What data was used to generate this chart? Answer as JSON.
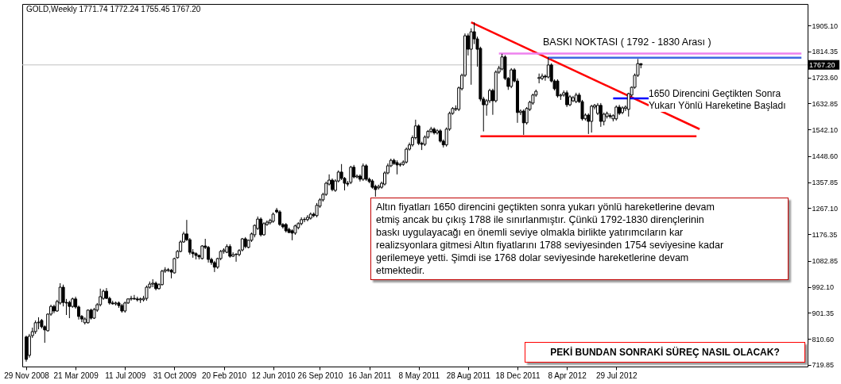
{
  "chart_data": {
    "type": "candlestick",
    "title": "GOLD,Weekly  1771.74 1772.24 1755.45 1767.20",
    "x": [
      "2008-11-29",
      "2008-12-06",
      "2008-12-13",
      "2008-12-20",
      "2008-12-27",
      "2009-01-03",
      "2009-01-10",
      "2009-01-17",
      "2009-01-24",
      "2009-01-31",
      "2009-02-07",
      "2009-02-14",
      "2009-02-21",
      "2009-02-28",
      "2009-03-07",
      "2009-03-14",
      "2009-03-21",
      "2009-03-28",
      "2009-04-04",
      "2009-04-11",
      "2009-04-18",
      "2009-04-25",
      "2009-05-02",
      "2009-05-09",
      "2009-05-16",
      "2009-05-23",
      "2009-05-30",
      "2009-06-06",
      "2009-06-13",
      "2009-06-20",
      "2009-06-27",
      "2009-07-04",
      "2009-07-11",
      "2009-07-18",
      "2009-07-25",
      "2009-08-01",
      "2009-08-08",
      "2009-08-15",
      "2009-08-22",
      "2009-08-29",
      "2009-09-05",
      "2009-09-12",
      "2009-09-19",
      "2009-09-26",
      "2009-10-03",
      "2009-10-10",
      "2009-10-17",
      "2009-10-24",
      "2009-10-31",
      "2009-11-07",
      "2009-11-14",
      "2009-11-21",
      "2009-11-28",
      "2009-12-05",
      "2009-12-12",
      "2009-12-19",
      "2009-12-26",
      "2010-01-02",
      "2010-01-09",
      "2010-01-16",
      "2010-01-23",
      "2010-01-30",
      "2010-02-06",
      "2010-02-13",
      "2010-02-20",
      "2010-02-27",
      "2010-03-06",
      "2010-03-13",
      "2010-03-20",
      "2010-03-27",
      "2010-04-03",
      "2010-04-10",
      "2010-04-17",
      "2010-04-24",
      "2010-05-01",
      "2010-05-08",
      "2010-05-15",
      "2010-05-22",
      "2010-05-29",
      "2010-06-05",
      "2010-06-12",
      "2010-06-20",
      "2010-06-27",
      "2010-07-04",
      "2010-07-11",
      "2010-07-18",
      "2010-07-25",
      "2010-08-01",
      "2010-08-08",
      "2010-08-15",
      "2010-08-22",
      "2010-08-29",
      "2010-09-05",
      "2010-09-12",
      "2010-09-19",
      "2010-09-26",
      "2010-10-03",
      "2010-10-10",
      "2010-10-17",
      "2010-10-24",
      "2010-10-31",
      "2010-11-07",
      "2010-11-14",
      "2010-11-21",
      "2010-11-28",
      "2010-12-05",
      "2010-12-12",
      "2010-12-19",
      "2010-12-26",
      "2011-01-02",
      "2011-01-09",
      "2011-01-16",
      "2011-01-23",
      "2011-01-30",
      "2011-02-06",
      "2011-02-13",
      "2011-02-20",
      "2011-02-27",
      "2011-03-06",
      "2011-03-13",
      "2011-03-20",
      "2011-03-27",
      "2011-04-03",
      "2011-04-10",
      "2011-04-17",
      "2011-04-24",
      "2011-05-01",
      "2011-05-08",
      "2011-05-15",
      "2011-05-22",
      "2011-05-29",
      "2011-06-05",
      "2011-06-12",
      "2011-06-19",
      "2011-06-26",
      "2011-07-03",
      "2011-07-10",
      "2011-07-17",
      "2011-07-24",
      "2011-07-31",
      "2011-08-07",
      "2011-08-14",
      "2011-08-21",
      "2011-08-28",
      "2011-09-04",
      "2011-09-11",
      "2011-09-18",
      "2011-09-25",
      "2011-10-02",
      "2011-10-09",
      "2011-10-16",
      "2011-10-23",
      "2011-10-30",
      "2011-11-06",
      "2011-11-13",
      "2011-11-20",
      "2011-11-27",
      "2011-12-04",
      "2011-12-11",
      "2011-12-18",
      "2011-12-25",
      "2012-01-01",
      "2012-01-08",
      "2012-01-15",
      "2012-01-22",
      "2012-01-29",
      "2012-02-05",
      "2012-02-12",
      "2012-02-19",
      "2012-02-26",
      "2012-03-04",
      "2012-03-11",
      "2012-03-18",
      "2012-03-25",
      "2012-04-01",
      "2012-04-08",
      "2012-04-15",
      "2012-04-22",
      "2012-04-29",
      "2012-05-06",
      "2012-05-13",
      "2012-05-20",
      "2012-05-27",
      "2012-06-03",
      "2012-06-10",
      "2012-06-17",
      "2012-06-24",
      "2012-07-01",
      "2012-07-08",
      "2012-07-15",
      "2012-07-22",
      "2012-07-29",
      "2012-08-05",
      "2012-08-12",
      "2012-08-19",
      "2012-08-26",
      "2012-09-02",
      "2012-09-09",
      "2012-09-16",
      "2012-09-23"
    ],
    "ohlc": [
      [
        817,
        822,
        731,
        739
      ],
      [
        753,
        828,
        745,
        820
      ],
      [
        822,
        850,
        814,
        836
      ],
      [
        836,
        875,
        828,
        867
      ],
      [
        867,
        886,
        844,
        869
      ],
      [
        875,
        880,
        847,
        853
      ],
      [
        853,
        858,
        797,
        842
      ],
      [
        839,
        900,
        836,
        897
      ],
      [
        897,
        930,
        891,
        924
      ],
      [
        924,
        930,
        900,
        908
      ],
      [
        908,
        947,
        905,
        941
      ],
      [
        936,
        1005,
        930,
        991
      ],
      [
        991,
        1000,
        924,
        938
      ],
      [
        938,
        950,
        894,
        936
      ],
      [
        938,
        944,
        883,
        924
      ],
      [
        924,
        955,
        919,
        950
      ],
      [
        950,
        958,
        916,
        922
      ],
      [
        922,
        927,
        878,
        889
      ],
      [
        889,
        894,
        869,
        880
      ],
      [
        867,
        886,
        861,
        880
      ],
      [
        867,
        913,
        864,
        911
      ],
      [
        911,
        916,
        878,
        883
      ],
      [
        883,
        919,
        880,
        913
      ],
      [
        911,
        936,
        905,
        930
      ],
      [
        930,
        986,
        924,
        958
      ],
      [
        952,
        983,
        947,
        977
      ],
      [
        977,
        988,
        950,
        952
      ],
      [
        952,
        958,
        930,
        936
      ],
      [
        936,
        944,
        930,
        933
      ],
      [
        933,
        941,
        927,
        936
      ],
      [
        936,
        941,
        919,
        927
      ],
      [
        927,
        933,
        902,
        908
      ],
      [
        908,
        941,
        902,
        936
      ],
      [
        936,
        952,
        933,
        950
      ],
      [
        950,
        961,
        944,
        952
      ],
      [
        952,
        964,
        947,
        950
      ],
      [
        950,
        958,
        941,
        947
      ],
      [
        947,
        955,
        936,
        950
      ],
      [
        947,
        961,
        941,
        952
      ],
      [
        952,
        997,
        944,
        991
      ],
      [
        991,
        1011,
        986,
        1002
      ],
      [
        1002,
        1019,
        991,
        1005
      ],
      [
        1005,
        1011,
        980,
        986
      ],
      [
        986,
        1005,
        983,
        1000
      ],
      [
        1000,
        1052,
        997,
        1047
      ],
      [
        1047,
        1061,
        1041,
        1052
      ],
      [
        1052,
        1058,
        1044,
        1050
      ],
      [
        1050,
        1055,
        1022,
        1044
      ],
      [
        1041,
        1094,
        1039,
        1091
      ],
      [
        1094,
        1121,
        1091,
        1116
      ],
      [
        1116,
        1155,
        1113,
        1149
      ],
      [
        1149,
        1185,
        1146,
        1177
      ],
      [
        1177,
        1226,
        1152,
        1157
      ],
      [
        1157,
        1163,
        1105,
        1113
      ],
      [
        1113,
        1124,
        1094,
        1108
      ],
      [
        1108,
        1113,
        1088,
        1102
      ],
      [
        1102,
        1105,
        1088,
        1097
      ],
      [
        1091,
        1138,
        1088,
        1135
      ],
      [
        1135,
        1160,
        1124,
        1130
      ],
      [
        1130,
        1135,
        1077,
        1088
      ],
      [
        1088,
        1094,
        1069,
        1077
      ],
      [
        1077,
        1083,
        1044,
        1061
      ],
      [
        1061,
        1094,
        1055,
        1091
      ],
      [
        1091,
        1121,
        1085,
        1116
      ],
      [
        1116,
        1127,
        1108,
        1121
      ],
      [
        1113,
        1141,
        1110,
        1133
      ],
      [
        1133,
        1141,
        1094,
        1099
      ],
      [
        1099,
        1113,
        1097,
        1105
      ],
      [
        1105,
        1110,
        1080,
        1106
      ],
      [
        1105,
        1124,
        1099,
        1119
      ],
      [
        1121,
        1163,
        1116,
        1160
      ],
      [
        1160,
        1166,
        1127,
        1133
      ],
      [
        1130,
        1157,
        1127,
        1155
      ],
      [
        1155,
        1182,
        1149,
        1177
      ],
      [
        1174,
        1210,
        1165,
        1207
      ],
      [
        1196,
        1238,
        1191,
        1229
      ],
      [
        1229,
        1235,
        1168,
        1174
      ],
      [
        1174,
        1218,
        1171,
        1213
      ],
      [
        1210,
        1224,
        1205,
        1218
      ],
      [
        1216,
        1230,
        1210,
        1224
      ],
      [
        1221,
        1252,
        1216,
        1246
      ],
      [
        1260,
        1268,
        1249,
        1254
      ],
      [
        1254,
        1260,
        1205,
        1210
      ],
      [
        1210,
        1215,
        1196,
        1202
      ],
      [
        1210,
        1215,
        1182,
        1188
      ],
      [
        1193,
        1199,
        1180,
        1182
      ],
      [
        1188,
        1193,
        1155,
        1180
      ],
      [
        1180,
        1210,
        1174,
        1205
      ],
      [
        1199,
        1218,
        1193,
        1213
      ],
      [
        1213,
        1235,
        1207,
        1227
      ],
      [
        1227,
        1235,
        1218,
        1228
      ],
      [
        1227,
        1243,
        1221,
        1235
      ],
      [
        1232,
        1252,
        1227,
        1246
      ],
      [
        1246,
        1252,
        1235,
        1241
      ],
      [
        1241,
        1285,
        1235,
        1277
      ],
      [
        1274,
        1302,
        1268,
        1296
      ],
      [
        1296,
        1321,
        1290,
        1315
      ],
      [
        1315,
        1360,
        1310,
        1354
      ],
      [
        1351,
        1385,
        1346,
        1365
      ],
      [
        1365,
        1371,
        1326,
        1332
      ],
      [
        1329,
        1368,
        1324,
        1362
      ],
      [
        1362,
        1399,
        1357,
        1393
      ],
      [
        1393,
        1421,
        1365,
        1371
      ],
      [
        1371,
        1376,
        1329,
        1354
      ],
      [
        1354,
        1362,
        1343,
        1351
      ],
      [
        1357,
        1415,
        1351,
        1410
      ],
      [
        1410,
        1418,
        1371,
        1376
      ],
      [
        1376,
        1385,
        1371,
        1379
      ],
      [
        1379,
        1385,
        1360,
        1368
      ],
      [
        1368,
        1423,
        1362,
        1415
      ],
      [
        1415,
        1421,
        1362,
        1368
      ],
      [
        1368,
        1374,
        1354,
        1360
      ],
      [
        1362,
        1368,
        1335,
        1340
      ],
      [
        1343,
        1349,
        1307,
        1332
      ],
      [
        1338,
        1349,
        1332,
        1343
      ],
      [
        1340,
        1360,
        1335,
        1354
      ],
      [
        1351,
        1396,
        1346,
        1390
      ],
      [
        1390,
        1423,
        1385,
        1415
      ],
      [
        1415,
        1440,
        1410,
        1434
      ],
      [
        1434,
        1440,
        1418,
        1423
      ],
      [
        1426,
        1434,
        1385,
        1418
      ],
      [
        1418,
        1426,
        1412,
        1420
      ],
      [
        1420,
        1434,
        1415,
        1428
      ],
      [
        1428,
        1479,
        1423,
        1473
      ],
      [
        1473,
        1496,
        1468,
        1488
      ],
      [
        1488,
        1521,
        1482,
        1513
      ],
      [
        1513,
        1576,
        1507,
        1554
      ],
      [
        1554,
        1560,
        1487,
        1493
      ],
      [
        1493,
        1499,
        1470,
        1490
      ],
      [
        1490,
        1521,
        1484,
        1515
      ],
      [
        1515,
        1540,
        1510,
        1535
      ],
      [
        1535,
        1551,
        1529,
        1543
      ],
      [
        1543,
        1549,
        1524,
        1530
      ],
      [
        1530,
        1543,
        1524,
        1537
      ],
      [
        1537,
        1543,
        1496,
        1501
      ],
      [
        1501,
        1507,
        1479,
        1488
      ],
      [
        1488,
        1549,
        1482,
        1543
      ],
      [
        1543,
        1604,
        1537,
        1598
      ],
      [
        1598,
        1620,
        1593,
        1615
      ],
      [
        1612,
        1626,
        1606,
        1615
      ],
      [
        1612,
        1692,
        1606,
        1687
      ],
      [
        1684,
        1737,
        1678,
        1731
      ],
      [
        1731,
        1877,
        1725,
        1869
      ],
      [
        1869,
        1877,
        1800,
        1822
      ],
      [
        1822,
        1895,
        1698,
        1883
      ],
      [
        1883,
        1916,
        1840,
        1858
      ],
      [
        1858,
        1866,
        1761,
        1822
      ],
      [
        1825,
        1831,
        1640,
        1648
      ],
      [
        1648,
        1656,
        1535,
        1628
      ],
      [
        1628,
        1648,
        1590,
        1642
      ],
      [
        1642,
        1684,
        1634,
        1678
      ],
      [
        1678,
        1684,
        1593,
        1642
      ],
      [
        1642,
        1748,
        1636,
        1742
      ],
      [
        1742,
        1764,
        1736,
        1756
      ],
      [
        1753,
        1806,
        1748,
        1795
      ],
      [
        1795,
        1801,
        1714,
        1720
      ],
      [
        1720,
        1725,
        1680,
        1692
      ],
      [
        1692,
        1756,
        1686,
        1750
      ],
      [
        1750,
        1756,
        1706,
        1711
      ],
      [
        1711,
        1720,
        1565,
        1601
      ],
      [
        1601,
        1612,
        1592,
        1606
      ],
      [
        1606,
        1612,
        1523,
        1565
      ],
      [
        1565,
        1620,
        1559,
        1615
      ],
      [
        1612,
        1642,
        1606,
        1637
      ],
      [
        1634,
        1667,
        1628,
        1662
      ],
      [
        1662,
        1681,
        1656,
        1675
      ],
      [
        1720,
        1737,
        1703,
        1723
      ],
      [
        1720,
        1737,
        1714,
        1728
      ],
      [
        1728,
        1734,
        1712,
        1725
      ],
      [
        1725,
        1795,
        1720,
        1767
      ],
      [
        1767,
        1773,
        1706,
        1711
      ],
      [
        1711,
        1717,
        1678,
        1684
      ],
      [
        1711,
        1717,
        1653,
        1659
      ],
      [
        1659,
        1667,
        1645,
        1662
      ],
      [
        1662,
        1678,
        1656,
        1670
      ],
      [
        1670,
        1678,
        1620,
        1628
      ],
      [
        1628,
        1662,
        1623,
        1656
      ],
      [
        1642,
        1659,
        1637,
        1653
      ],
      [
        1639,
        1670,
        1634,
        1662
      ],
      [
        1662,
        1670,
        1634,
        1639
      ],
      [
        1639,
        1645,
        1573,
        1579
      ],
      [
        1579,
        1598,
        1573,
        1592
      ],
      [
        1592,
        1598,
        1526,
        1570
      ],
      [
        1570,
        1628,
        1531,
        1623
      ],
      [
        1620,
        1631,
        1612,
        1626
      ],
      [
        1598,
        1634,
        1592,
        1626
      ],
      [
        1626,
        1634,
        1551,
        1570
      ],
      [
        1570,
        1601,
        1556,
        1595
      ],
      [
        1587,
        1604,
        1580,
        1598
      ],
      [
        1590,
        1598,
        1580,
        1587
      ],
      [
        1579,
        1595,
        1570,
        1590
      ],
      [
        1579,
        1626,
        1573,
        1620
      ],
      [
        1620,
        1628,
        1592,
        1598
      ],
      [
        1601,
        1623,
        1595,
        1617
      ],
      [
        1615,
        1626,
        1606,
        1620
      ],
      [
        1612,
        1670,
        1587,
        1667
      ],
      [
        1662,
        1692,
        1656,
        1689
      ],
      [
        1689,
        1737,
        1684,
        1731
      ],
      [
        1731,
        1788,
        1725,
        1771.74
      ],
      [
        1771.74,
        1772.24,
        1755.45,
        1767.2
      ]
    ],
    "series": [
      {
        "type": "line",
        "color": "#ff0000",
        "x": [
          "2011-09-04",
          "2013-02-03"
        ],
        "values": [
          1916,
          1543
        ]
      },
      {
        "type": "line",
        "color": "#ff0000",
        "x": [
          "2011-09-25",
          "2013-01-27"
        ],
        "values": [
          1518,
          1518
        ]
      },
      {
        "type": "line",
        "color": "#ee82ee",
        "x": [
          "2011-11-06",
          "2013-09-22"
        ],
        "values": [
          1807,
          1807
        ]
      },
      {
        "type": "line",
        "color": "#4169e1",
        "x": [
          "2012-02-26",
          "2013-09-22"
        ],
        "values": [
          1792,
          1792
        ]
      },
      {
        "type": "line",
        "color": "#0000ff",
        "x": [
          "2012-07-22",
          "2012-10-14"
        ],
        "values": [
          1650,
          1650
        ]
      }
    ],
    "ref_lines": [
      {
        "axis": "y",
        "value": 1767.2,
        "label": "1767.20",
        "color": "#c0c0c0"
      }
    ],
    "annotations": [
      "BASKI NOKTASI ( 1792 - 1830 Arası )",
      "1650 Direncini Geçtikten Sonra\nYukarı Yönlü Hareketine Başladı",
      "Altın fiyatları 1650 direncini geçtikten sonra yukarı yönlü hareketlerine devam\netmiş ancak bu çıkış 1788 ile sınırlanmıştır. Çünkü 1792-1830 dirençlerinin\nbaskı uygulayacağı en önemli seviye olmakla birlikte yatırımcıların kar\nrealizsyonlara gitmesi Altın fiyatlarını 1788 seviyesinden 1754 seviyesine kadar\ngerilemeye yetti. Şimdi ise 1768 dolar seviyesinde hareketlerine devam\netmektedir.",
      "PEKİ BUNDAN SONRAKİ SÜREÇ NASIL OLACAK?"
    ],
    "xlim": [
      "2008-11-20",
      "2013-10-06"
    ],
    "ylim": [
      714,
      1980
    ],
    "xticks": [
      {
        "value": "2008-11-29",
        "label": "29 Nov 2008"
      },
      {
        "value": "2009-03-21",
        "label": "21 Mar 2009"
      },
      {
        "value": "2009-07-11",
        "label": "11 Jul 2009"
      },
      {
        "value": "2009-10-31",
        "label": "31 Oct 2009"
      },
      {
        "value": "2010-02-20",
        "label": "20 Feb 2010"
      },
      {
        "value": "2010-06-12",
        "label": "12 Jun 2010"
      },
      {
        "value": "2010-09-26",
        "label": "26 Sep 2010"
      },
      {
        "value": "2011-01-16",
        "label": "16 Jan 2011"
      },
      {
        "value": "2011-05-08",
        "label": "8 May 2011"
      },
      {
        "value": "2011-08-28",
        "label": "28 Aug 2011"
      },
      {
        "value": "2011-12-18",
        "label": "18 Dec 2011"
      },
      {
        "value": "2012-04-08",
        "label": "8 Apr 2012"
      },
      {
        "value": "2012-07-29",
        "label": "29 Jul 2012"
      }
    ],
    "yticks": [
      {
        "value": 1905.1,
        "label": "1905.10"
      },
      {
        "value": 1814.35,
        "label": "1814.35"
      },
      {
        "value": 1723.6,
        "label": "1723.60"
      },
      {
        "value": 1632.85,
        "label": "1632.85"
      },
      {
        "value": 1542.1,
        "label": "1542.10"
      },
      {
        "value": 1448.6,
        "label": "1448.60"
      },
      {
        "value": 1357.85,
        "label": "1357.85"
      },
      {
        "value": 1267.1,
        "label": "1267.10"
      },
      {
        "value": 1176.35,
        "label": "1176.35"
      },
      {
        "value": 1082.85,
        "label": "1082.85"
      },
      {
        "value": 992.1,
        "label": "992.10"
      },
      {
        "value": 901.35,
        "label": "901.35"
      },
      {
        "value": 810.6,
        "label": "810.60"
      },
      {
        "value": 719.85,
        "label": "719.85"
      }
    ]
  }
}
